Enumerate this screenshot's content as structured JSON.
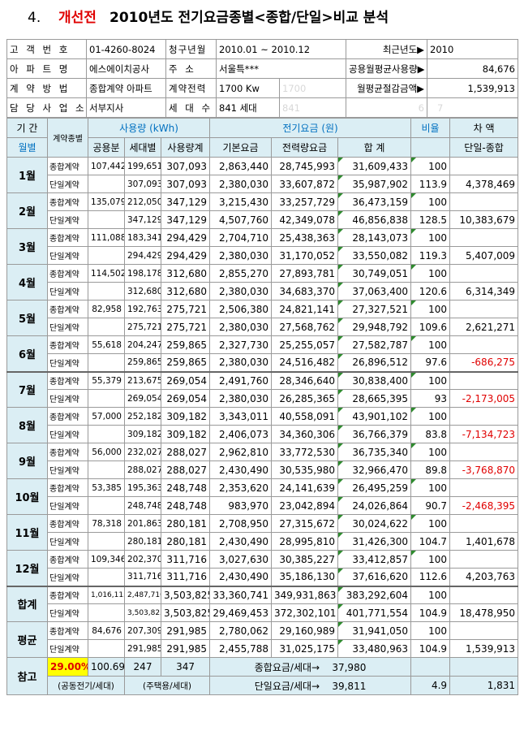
{
  "title": {
    "number": "4.",
    "highlight": "개선전",
    "rest": "2010년도 전기요금종별<종합/단일>비교 분석"
  },
  "info": {
    "customer_no_label": "고 객 번 호",
    "customer_no": "01-4260-8024",
    "billing_label": "청구년월",
    "billing": "2010.01 ~ 2010.12",
    "recent_year_label": "최근년도▶",
    "recent_year": "2010",
    "apartment_label": "아 파 트 명",
    "apartment": "에스에이치공사",
    "address_label": "주 소",
    "address": "서울특***",
    "common_avg_label": "공용월평균사용량▶",
    "common_avg": "84,676",
    "contract_method_label": "계 약 방 법",
    "contract_method": "종합계약 아파트",
    "contract_power_label": "계약전력",
    "contract_power": "1700 Kw",
    "contract_power_ghost": "1700",
    "monthly_savings_label": "월평균절감금액▶",
    "monthly_savings": "1,539,913",
    "office_label": "담 당 사 업 소",
    "office": "서부지사",
    "households_label": "세 대 수",
    "households": "841 세대",
    "households_ghost": "841",
    "ghost6": "6",
    "ghost7": "7"
  },
  "headers": {
    "period": "기 간",
    "month": "월별",
    "contract_type": "계약종별",
    "usage": "사용량 (kWh)",
    "common": "공용분",
    "household": "세대별",
    "usage_total": "사용량계",
    "charge": "전기요금 (원)",
    "base": "기본요금",
    "power": "전력량요금",
    "sum": "합  계",
    "ratio": "비율",
    "diff": "차  액",
    "diff_sub": "단일-종합"
  },
  "months": [
    {
      "label": "1월",
      "rows": [
        {
          "type": "종합계약",
          "common": "107,442",
          "household": "199,651",
          "total": "307,093",
          "base": "2,863,440",
          "power": "28,745,993",
          "sum": "31,609,433",
          "ratio": "100",
          "diff": ""
        },
        {
          "type": "단일계약",
          "common": "",
          "household": "307,093",
          "total": "307,093",
          "base": "2,380,030",
          "power": "33,607,872",
          "sum": "35,987,902",
          "ratio": "113.9",
          "diff": "4,378,469"
        }
      ]
    },
    {
      "label": "2월",
      "rows": [
        {
          "type": "종합계약",
          "common": "135,079",
          "household": "212,050",
          "total": "347,129",
          "base": "3,215,430",
          "power": "33,257,729",
          "sum": "36,473,159",
          "ratio": "100",
          "diff": ""
        },
        {
          "type": "단일계약",
          "common": "",
          "household": "347,129",
          "total": "347,129",
          "base": "4,507,760",
          "power": "42,349,078",
          "sum": "46,856,838",
          "ratio": "128.5",
          "diff": "10,383,679"
        }
      ]
    },
    {
      "label": "3월",
      "rows": [
        {
          "type": "종합계약",
          "common": "111,088",
          "household": "183,341",
          "total": "294,429",
          "base": "2,704,710",
          "power": "25,438,363",
          "sum": "28,143,073",
          "ratio": "100",
          "diff": ""
        },
        {
          "type": "단일계약",
          "common": "",
          "household": "294,429",
          "total": "294,429",
          "base": "2,380,030",
          "power": "31,170,052",
          "sum": "33,550,082",
          "ratio": "119.3",
          "diff": "5,407,009"
        }
      ]
    },
    {
      "label": "4월",
      "rows": [
        {
          "type": "종합계약",
          "common": "114,502",
          "household": "198,178",
          "total": "312,680",
          "base": "2,855,270",
          "power": "27,893,781",
          "sum": "30,749,051",
          "ratio": "100",
          "diff": ""
        },
        {
          "type": "단일계약",
          "common": "",
          "household": "312,680",
          "total": "312,680",
          "base": "2,380,030",
          "power": "34,683,370",
          "sum": "37,063,400",
          "ratio": "120.6",
          "diff": "6,314,349"
        }
      ]
    },
    {
      "label": "5월",
      "rows": [
        {
          "type": "종합계약",
          "common": "82,958",
          "household": "192,763",
          "total": "275,721",
          "base": "2,506,380",
          "power": "24,821,141",
          "sum": "27,327,521",
          "ratio": "100",
          "diff": ""
        },
        {
          "type": "단일계약",
          "common": "",
          "household": "275,721",
          "total": "275,721",
          "base": "2,380,030",
          "power": "27,568,762",
          "sum": "29,948,792",
          "ratio": "109.6",
          "diff": "2,621,271"
        }
      ]
    },
    {
      "label": "6월",
      "rows": [
        {
          "type": "종합계약",
          "common": "55,618",
          "household": "204,247",
          "total": "259,865",
          "base": "2,327,730",
          "power": "25,255,057",
          "sum": "27,582,787",
          "ratio": "100",
          "diff": ""
        },
        {
          "type": "단일계약",
          "common": "",
          "household": "259,865",
          "total": "259,865",
          "base": "2,380,030",
          "power": "24,516,482",
          "sum": "26,896,512",
          "ratio": "97.6",
          "diff": "-686,275"
        }
      ]
    },
    {
      "label": "7월",
      "rows": [
        {
          "type": "종합계약",
          "common": "55,379",
          "household": "213,675",
          "total": "269,054",
          "base": "2,491,760",
          "power": "28,346,640",
          "sum": "30,838,400",
          "ratio": "100",
          "diff": ""
        },
        {
          "type": "단일계약",
          "common": "",
          "household": "269,054",
          "total": "269,054",
          "base": "2,380,030",
          "power": "26,285,365",
          "sum": "28,665,395",
          "ratio": "93",
          "diff": "-2,173,005"
        }
      ]
    },
    {
      "label": "8월",
      "rows": [
        {
          "type": "종합계약",
          "common": "57,000",
          "household": "252,182",
          "total": "309,182",
          "base": "3,343,011",
          "power": "40,558,091",
          "sum": "43,901,102",
          "ratio": "100",
          "diff": ""
        },
        {
          "type": "단일계약",
          "common": "",
          "household": "309,182",
          "total": "309,182",
          "base": "2,406,073",
          "power": "34,360,306",
          "sum": "36,766,379",
          "ratio": "83.8",
          "diff": "-7,134,723"
        }
      ]
    },
    {
      "label": "9월",
      "rows": [
        {
          "type": "종합계약",
          "common": "56,000",
          "household": "232,027",
          "total": "288,027",
          "base": "2,962,810",
          "power": "33,772,530",
          "sum": "36,735,340",
          "ratio": "100",
          "diff": ""
        },
        {
          "type": "단일계약",
          "common": "",
          "household": "288,027",
          "total": "288,027",
          "base": "2,430,490",
          "power": "30,535,980",
          "sum": "32,966,470",
          "ratio": "89.8",
          "diff": "-3,768,870"
        }
      ]
    },
    {
      "label": "10월",
      "rows": [
        {
          "type": "종합계약",
          "common": "53,385",
          "household": "195,363",
          "total": "248,748",
          "base": "2,353,620",
          "power": "24,141,639",
          "sum": "26,495,259",
          "ratio": "100",
          "diff": ""
        },
        {
          "type": "단일계약",
          "common": "",
          "household": "248,748",
          "total": "248,748",
          "base": "983,970",
          "power": "23,042,894",
          "sum": "24,026,864",
          "ratio": "90.7",
          "diff": "-2,468,395"
        }
      ]
    },
    {
      "label": "11월",
      "rows": [
        {
          "type": "종합계약",
          "common": "78,318",
          "household": "201,863",
          "total": "280,181",
          "base": "2,708,950",
          "power": "27,315,672",
          "sum": "30,024,622",
          "ratio": "100",
          "diff": ""
        },
        {
          "type": "단일계약",
          "common": "",
          "household": "280,181",
          "total": "280,181",
          "base": "2,430,490",
          "power": "28,995,810",
          "sum": "31,426,300",
          "ratio": "104.7",
          "diff": "1,401,678"
        }
      ]
    },
    {
      "label": "12월",
      "rows": [
        {
          "type": "종합계약",
          "common": "109,346",
          "household": "202,370",
          "total": "311,716",
          "base": "3,027,630",
          "power": "30,385,227",
          "sum": "33,412,857",
          "ratio": "100",
          "diff": ""
        },
        {
          "type": "단일계약",
          "common": "",
          "household": "311,716",
          "total": "311,716",
          "base": "2,430,490",
          "power": "35,186,130",
          "sum": "37,616,620",
          "ratio": "112.6",
          "diff": "4,203,763"
        }
      ]
    },
    {
      "label": "합계",
      "rows": [
        {
          "type": "종합계약",
          "common": "1,016,115",
          "household": "2,487,710",
          "total": "3,503,825",
          "base": "33,360,741",
          "power": "349,931,863",
          "sum": "383,292,604",
          "ratio": "100",
          "diff": ""
        },
        {
          "type": "단일계약",
          "common": "",
          "household": "3,503,825",
          "total": "3,503,825",
          "base": "29,469,453",
          "power": "372,302,101",
          "sum": "401,771,554",
          "ratio": "104.9",
          "diff": "18,478,950"
        }
      ]
    },
    {
      "label": "평균",
      "rows": [
        {
          "type": "종합계약",
          "common": "84,676",
          "household": "207,309",
          "total": "291,985",
          "base": "2,780,062",
          "power": "29,160,989",
          "sum": "31,941,050",
          "ratio": "100",
          "diff": ""
        },
        {
          "type": "단일계약",
          "common": "",
          "household": "291,985",
          "total": "291,985",
          "base": "2,455,788",
          "power": "31,025,175",
          "sum": "33,480,963",
          "ratio": "104.9",
          "diff": "1,539,913"
        }
      ]
    }
  ],
  "reference": {
    "label": "참고",
    "percent": "29.00%",
    "v1": "100.69",
    "v2": "247",
    "v3": "347",
    "comp_label": "종합요금/세대→",
    "comp_value": "37,980",
    "common_label": "(공동전기/세대)",
    "house_label": "(주택용/세대)",
    "single_label": "단일요금/세대→",
    "single_value": "39,811",
    "ratio": "4.9",
    "diff": "1,831"
  }
}
